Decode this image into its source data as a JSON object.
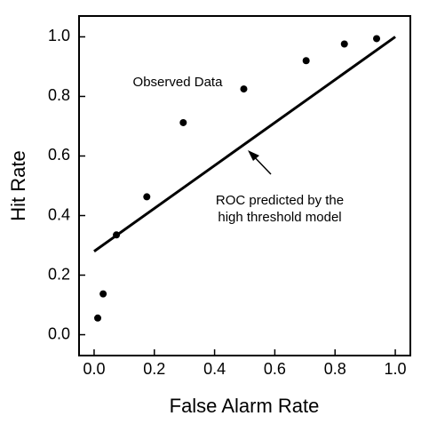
{
  "chart_data": {
    "type": "scatter",
    "xlabel": "False Alarm Rate",
    "ylabel": "Hit Rate",
    "xlim": [
      -0.05,
      1.05
    ],
    "ylim": [
      -0.07,
      1.07
    ],
    "xticks": [
      {
        "value": 0,
        "label": "0.0"
      },
      0.2,
      0.4,
      0.6,
      0.8,
      {
        "value": 1,
        "label": "1.0"
      }
    ],
    "yticks": [
      {
        "value": 0,
        "label": "0.0"
      },
      0.2,
      0.4,
      0.6,
      0.8,
      {
        "value": 1,
        "label": "1.0"
      }
    ],
    "series": [
      {
        "name": "Observed Data",
        "type": "scatter",
        "color": "#000000",
        "x": [
          0.012,
          0.03,
          0.074,
          0.175,
          0.296,
          0.497,
          0.704,
          0.831,
          0.938
        ],
        "values": [
          0.056,
          0.137,
          0.335,
          0.463,
          0.712,
          0.825,
          0.92,
          0.976,
          0.994
        ]
      },
      {
        "type": "line",
        "color": "#000000",
        "x": [
          0,
          1
        ],
        "values": [
          0.28,
          1
        ]
      }
    ],
    "annotations": [
      "ROC predicted by the",
      "high threshold model"
    ]
  }
}
